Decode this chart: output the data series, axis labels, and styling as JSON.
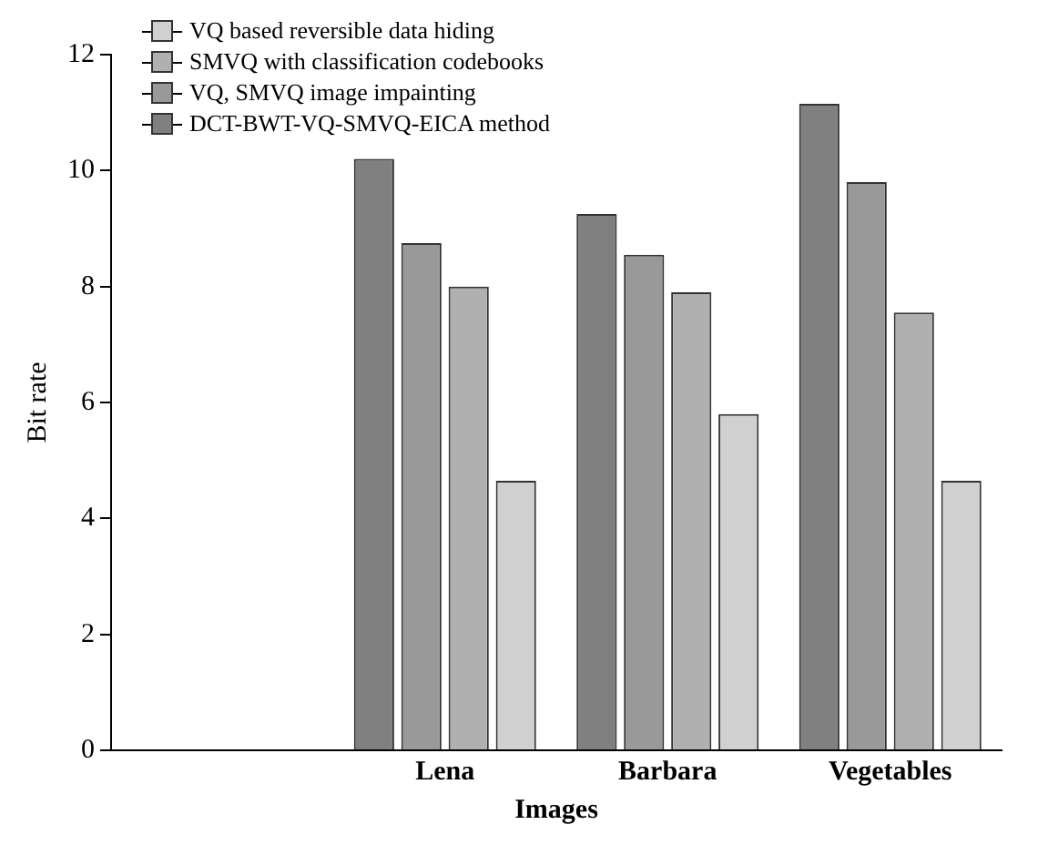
{
  "chart_data": {
    "type": "bar",
    "xlabel": "Images",
    "ylabel": "Bit rate",
    "categories": [
      null,
      "Lena",
      "Barbara",
      "Vegetables"
    ],
    "series": [
      {
        "name": "DCT-BWT-VQ-SMVQ-EICA method",
        "color": "#808080",
        "values": [
          null,
          10.2,
          9.25,
          11.15
        ]
      },
      {
        "name": "VQ, SMVQ image impainting",
        "color": "#999999",
        "values": [
          null,
          8.75,
          8.55,
          9.8
        ]
      },
      {
        "name": "SMVQ with classification codebooks",
        "color": "#b0b0b0",
        "values": [
          null,
          8.0,
          7.9,
          7.55
        ]
      },
      {
        "name": "VQ based reversible data hiding",
        "color": "#d0d0d0",
        "values": [
          null,
          4.65,
          5.8,
          4.65
        ]
      }
    ],
    "ylim": [
      0,
      12
    ],
    "yticks": [
      0,
      2,
      4,
      6,
      8,
      10,
      12
    ],
    "grid": false,
    "legend": "top left"
  }
}
